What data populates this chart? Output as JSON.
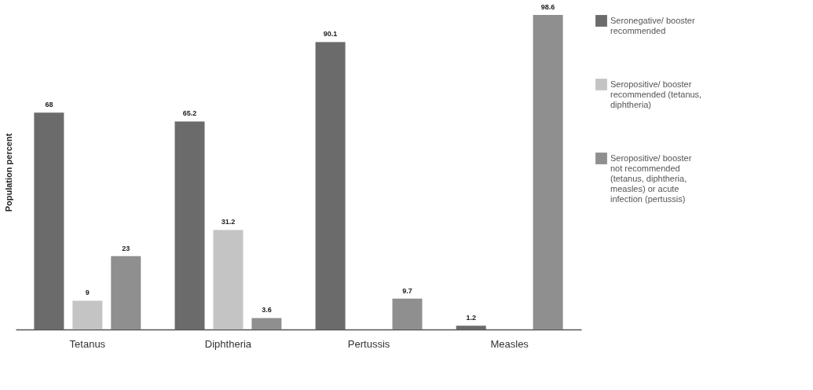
{
  "chart_data": {
    "type": "bar",
    "ylabel": "Population percent",
    "categories": [
      "Tetanus",
      "Diphtheria",
      "Pertussis",
      "Measles"
    ],
    "series": [
      {
        "name": "Seronegative/ booster recommended",
        "color": "#6b6b6b",
        "values": [
          68,
          65.2,
          90.1,
          1.2
        ]
      },
      {
        "name": "Seropositive/ booster recommended (tetanus, diphtheria)",
        "color": "#c4c4c4",
        "values": [
          9,
          31.2,
          null,
          null
        ]
      },
      {
        "name": "Seropositive/ booster not recommended (tetanus, diphtheria, measles) or acute infection (pertussis)",
        "color": "#8f8f8f",
        "values": [
          23,
          3.6,
          9.7,
          98.6
        ]
      }
    ],
    "data_labels": true,
    "grid": false,
    "legend": "right",
    "tick_labels": "x"
  }
}
